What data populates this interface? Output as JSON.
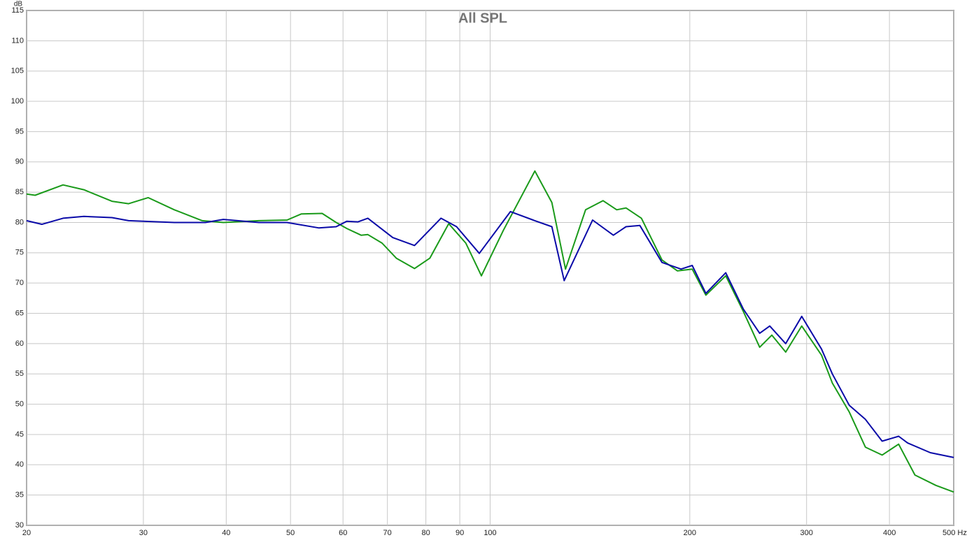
{
  "chart_data": {
    "type": "line",
    "title": "All SPL",
    "ylabel": "dB",
    "xscale": "log",
    "grid": true,
    "xlim": [
      20,
      500
    ],
    "ylim": [
      30,
      115
    ],
    "xticks": [
      20,
      30,
      40,
      50,
      60,
      70,
      80,
      90,
      100,
      200,
      300,
      400,
      {
        "value": 500,
        "label": "500 Hz"
      }
    ],
    "yticks": [
      30,
      35,
      40,
      45,
      50,
      55,
      60,
      65,
      70,
      75,
      80,
      85,
      90,
      95,
      100,
      105,
      110,
      115
    ],
    "series": [
      {
        "color": "#1a9a1a",
        "x": [
          20,
          20.6,
          22.7,
          24.4,
          26.9,
          28.5,
          30.5,
          33.4,
          36.8,
          39.6,
          44.8,
          49.4,
          51.9,
          55.8,
          58.6,
          60.8,
          63.9,
          65.4,
          68.7,
          72.2,
          76.9,
          81.1,
          86.6,
          91.9,
          97.0,
          104.7,
          116.8,
          123.9,
          129.9,
          139.3,
          148.0,
          155.2,
          160.3,
          169.1,
          181.6,
          191.6,
          201.7,
          211.5,
          226.6,
          240.9,
          254.9,
          265.9,
          279,
          295,
          316,
          328,
          348,
          368,
          390,
          413,
          437,
          470,
          500
        ],
        "values": [
          84.7,
          84.5,
          86.2,
          85.4,
          83.5,
          83.1,
          84.1,
          82.1,
          80.3,
          80.0,
          80.3,
          80.4,
          81.4,
          81.5,
          80.0,
          79.0,
          77.9,
          78.0,
          76.6,
          74.1,
          72.4,
          74.1,
          79.8,
          76.6,
          71.2,
          78.7,
          88.5,
          83.3,
          72.3,
          82.1,
          83.6,
          82.1,
          82.4,
          80.7,
          73.8,
          72.0,
          72.3,
          68.0,
          71.2,
          65.3,
          59.4,
          61.4,
          58.6,
          62.9,
          58.1,
          53.5,
          48.7,
          42.9,
          41.6,
          43.4,
          38.3,
          36.6,
          35.5
        ]
      },
      {
        "color": "#0a0aa8",
        "x": [
          20,
          21.1,
          22.7,
          24.4,
          26.9,
          28.5,
          33.4,
          37.2,
          39.6,
          44.8,
          49.4,
          55.2,
          58.6,
          60.8,
          63.2,
          65.4,
          71.3,
          76.9,
          84.3,
          89.0,
          96.3,
          107.3,
          116.8,
          123.9,
          129.3,
          142.7,
          153.4,
          160.3,
          168.2,
          181.6,
          194.0,
          201.7,
          211.5,
          226.6,
          240.9,
          254.9,
          264,
          279,
          295,
          316,
          328,
          348,
          368,
          390,
          413,
          426,
          461,
          500
        ],
        "values": [
          80.3,
          79.7,
          80.7,
          81.0,
          80.8,
          80.3,
          80.0,
          80.0,
          80.5,
          80.0,
          80.0,
          79.1,
          79.3,
          80.2,
          80.1,
          80.7,
          77.5,
          76.2,
          80.7,
          79.3,
          74.9,
          81.8,
          80.3,
          79.3,
          70.4,
          80.4,
          77.9,
          79.3,
          79.5,
          73.4,
          72.3,
          72.9,
          68.3,
          71.7,
          65.7,
          61.7,
          62.9,
          60.0,
          64.5,
          59.1,
          55.0,
          49.8,
          47.5,
          43.9,
          44.7,
          43.6,
          42.0,
          41.2
        ]
      }
    ]
  }
}
